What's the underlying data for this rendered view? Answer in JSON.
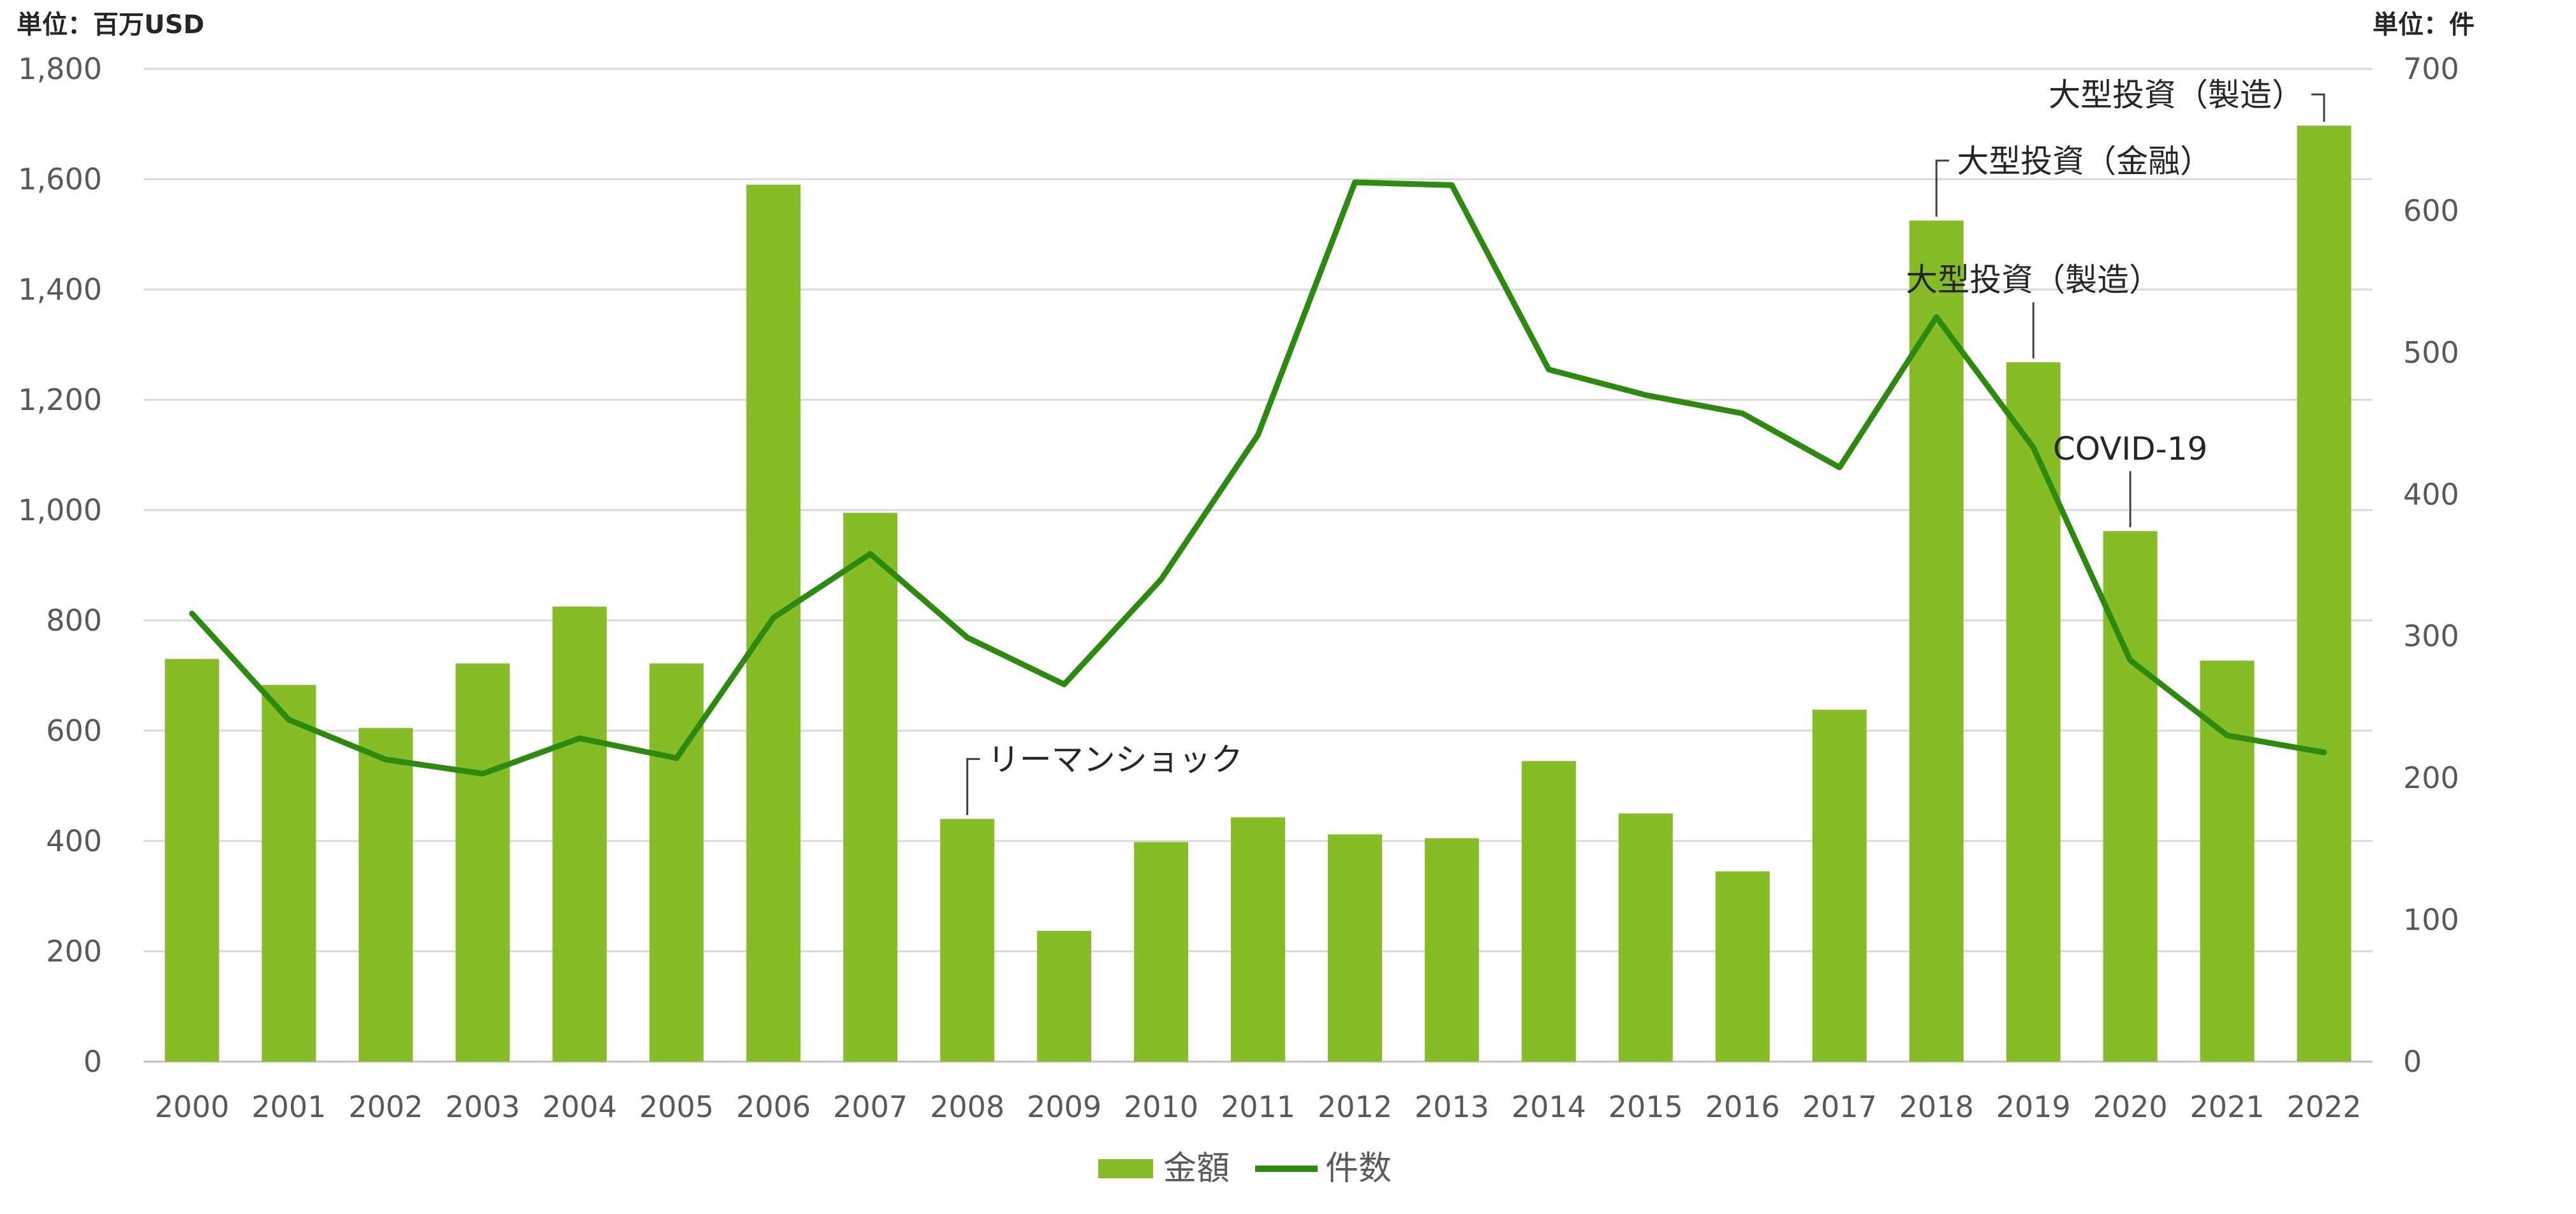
{
  "chart_data": {
    "type": "bar",
    "categories": [
      "2000",
      "2001",
      "2002",
      "2003",
      "2004",
      "2005",
      "2006",
      "2007",
      "2008",
      "2009",
      "2010",
      "2011",
      "2012",
      "2013",
      "2014",
      "2015",
      "2016",
      "2017",
      "2018",
      "2019",
      "2020",
      "2021",
      "2022"
    ],
    "series": [
      {
        "name": "金額",
        "type": "bar",
        "axis": "left",
        "color": "#86BC25",
        "values": [
          730,
          683,
          605,
          722,
          825,
          722,
          1590,
          995,
          440,
          237,
          398,
          443,
          412,
          405,
          545,
          450,
          345,
          638,
          1525,
          1268,
          962,
          727,
          1697
        ]
      },
      {
        "name": "件数",
        "type": "line",
        "axis": "right",
        "color": "#2C8A0F",
        "values": [
          316,
          241,
          213,
          203,
          228,
          214,
          313,
          358,
          299,
          266,
          340,
          442,
          620,
          618,
          488,
          470,
          457,
          419,
          525,
          433,
          283,
          230,
          218
        ]
      }
    ],
    "y_left": {
      "unit_label": "単位：百万USD",
      "min": 0,
      "max": 1800,
      "step": 200
    },
    "y_right": {
      "unit_label": "単位：件",
      "min": 0,
      "max": 700,
      "step": 100
    },
    "grid": true,
    "legend_position": "bottom",
    "annotations": [
      {
        "text": "リーマンショック",
        "category": "2008"
      },
      {
        "text": "大型投資（金融）",
        "category": "2018"
      },
      {
        "text": "大型投資（製造）",
        "category": "2019"
      },
      {
        "text": "COVID-19",
        "category": "2020"
      },
      {
        "text": "大型投資（製造）",
        "category": "2022"
      }
    ]
  }
}
